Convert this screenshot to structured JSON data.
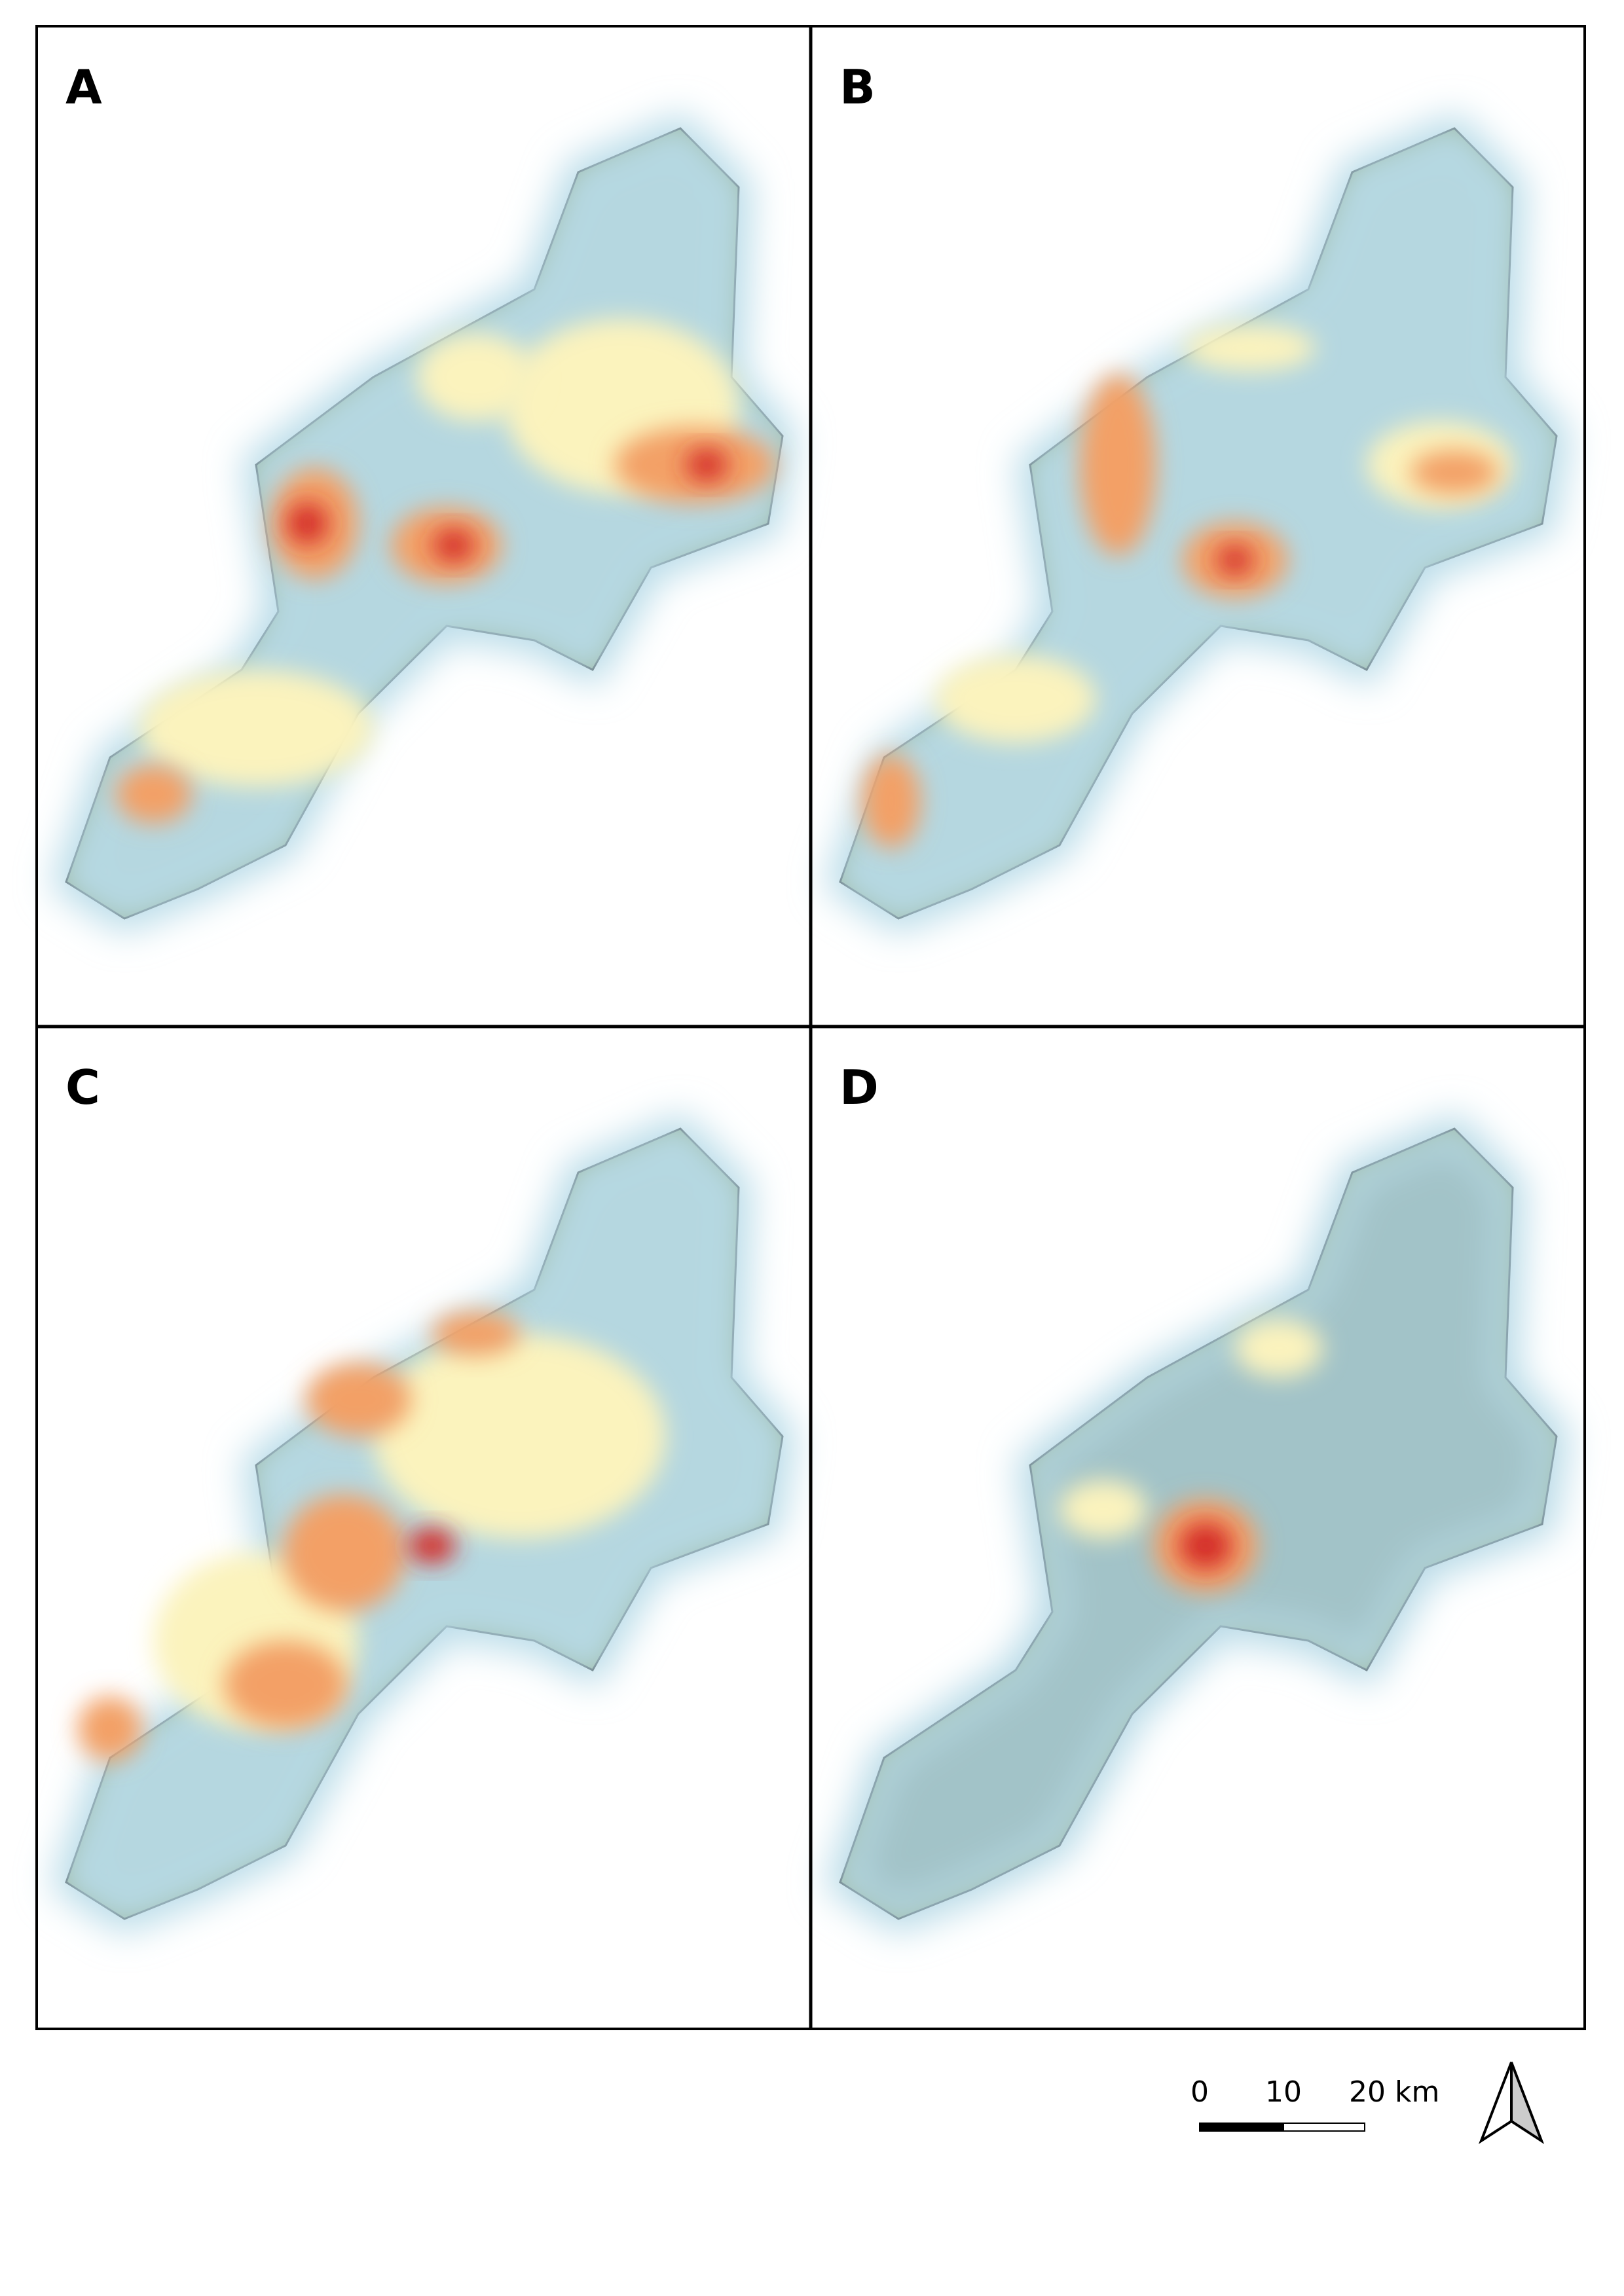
{
  "panels": [
    {
      "label": "A"
    },
    {
      "label": "B"
    },
    {
      "label": "C"
    },
    {
      "label": "D"
    }
  ],
  "scale_bar": {
    "labels": [
      "0",
      "10",
      "20 km"
    ]
  }
}
